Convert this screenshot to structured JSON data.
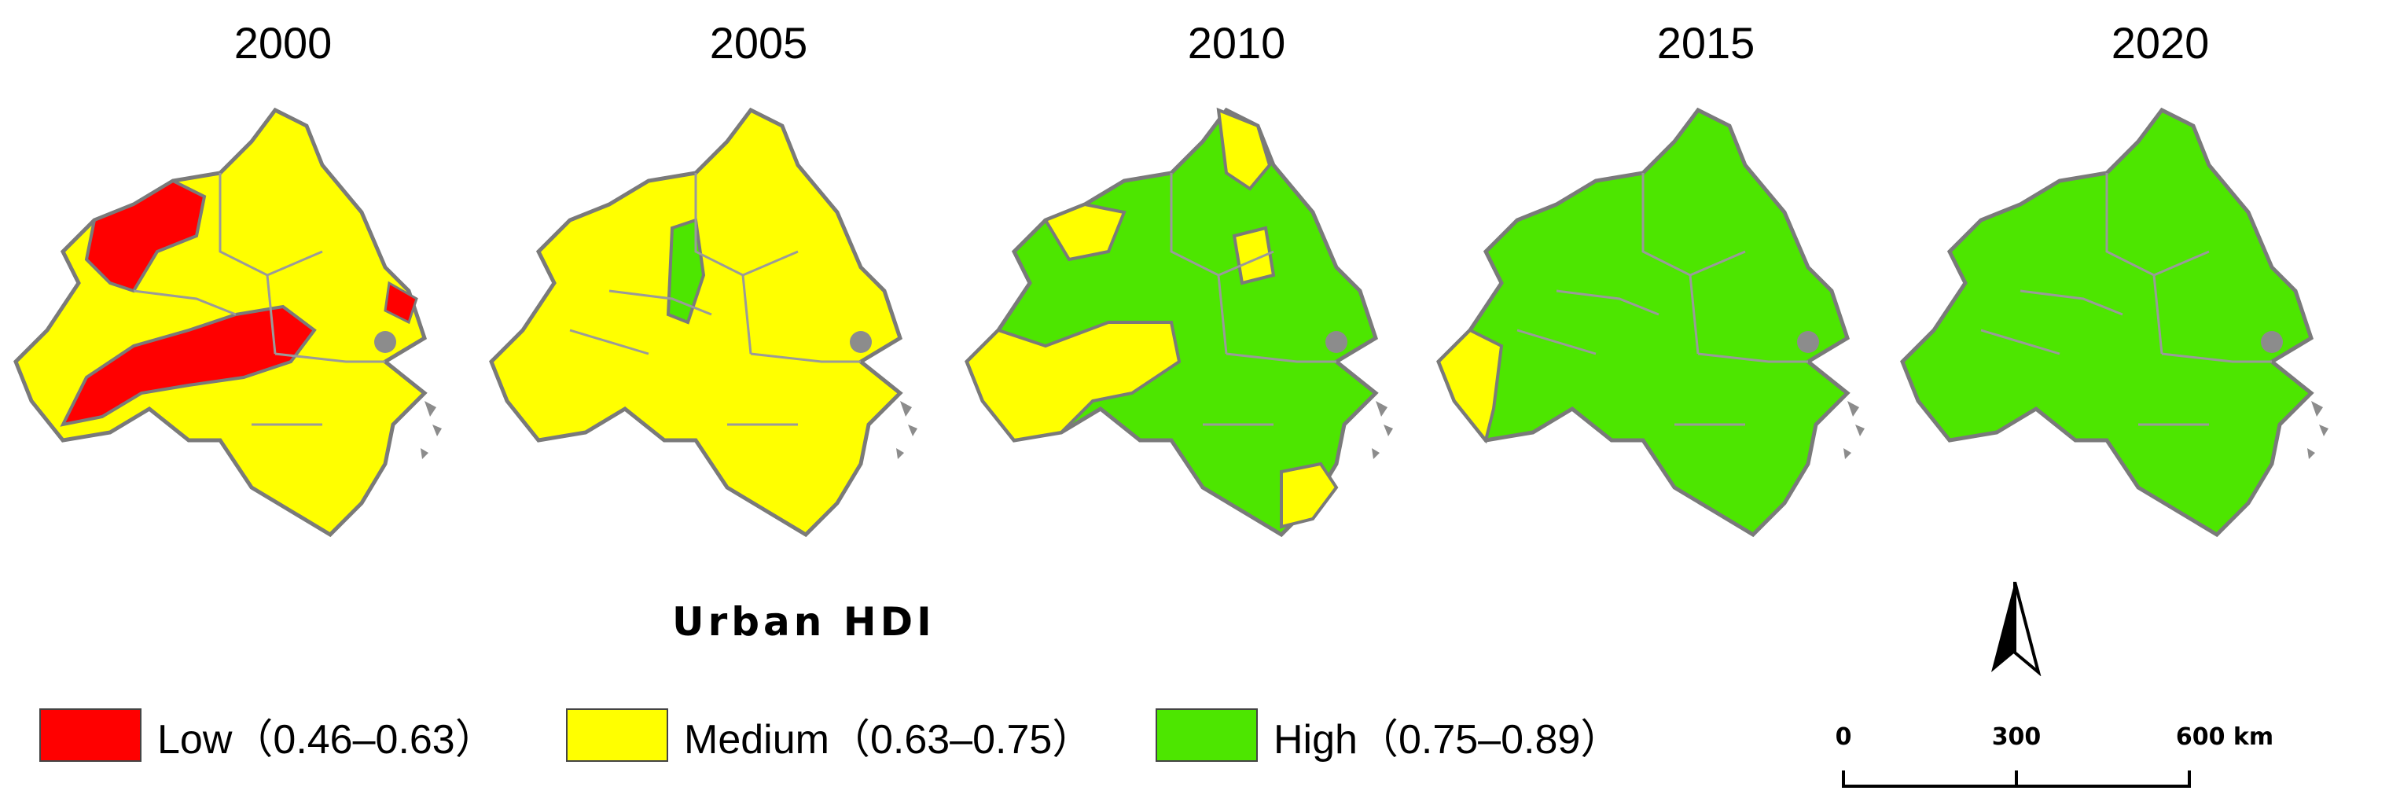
{
  "years": [
    "2000",
    "2005",
    "2010",
    "2015",
    "2020"
  ],
  "legend": {
    "title": "Urban HDI",
    "items": [
      {
        "label": "Low（0.46–0.63）",
        "color": "#ff0000"
      },
      {
        "label": "Medium（0.63–0.75）",
        "color": "#ffff00"
      },
      {
        "label": "High（0.75–0.89）",
        "color": "#4de600"
      }
    ]
  },
  "scale": {
    "ticks": [
      "0",
      "300"
    ],
    "end_label": "600 km"
  },
  "colors": {
    "border": "#7a7a7a",
    "water": "#8c8c8c",
    "low": "#ff0000",
    "medium": "#ffff00",
    "high": "#4de600"
  }
}
